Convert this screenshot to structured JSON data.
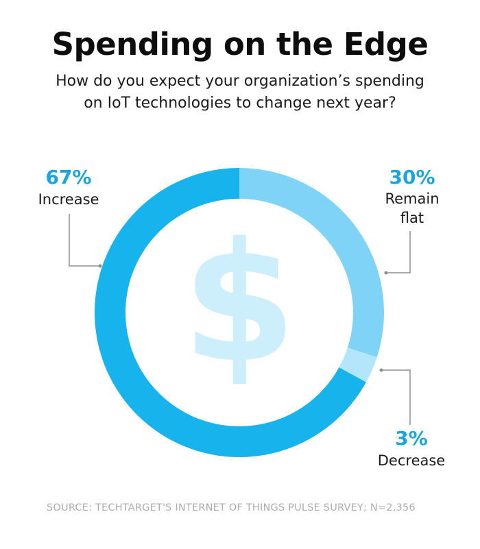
{
  "title": "Spending on the Edge",
  "subtitle_lines": [
    "How do you expect your organization’s spending",
    "on IoT technologies to change next year?"
  ],
  "source": "SOURCE: TECHTARGET'S INTERNET OF THINGS PULSE SURVEY; N=2,356",
  "center_icon": "dollar-sign-icon",
  "colors": {
    "increase": "#17b3ec",
    "remain_flat": "#7fd3f7",
    "decrease": "#b3e6fb",
    "pct_text": "#1aa5dc",
    "icon": "#cdeefb",
    "leader": "#8a8f94"
  },
  "chart_data": {
    "type": "pie",
    "donut": true,
    "categories": [
      "Increase",
      "Remain flat",
      "Decrease"
    ],
    "values": [
      67,
      30,
      3
    ],
    "value_labels": [
      "67%",
      "30%",
      "3%"
    ]
  }
}
